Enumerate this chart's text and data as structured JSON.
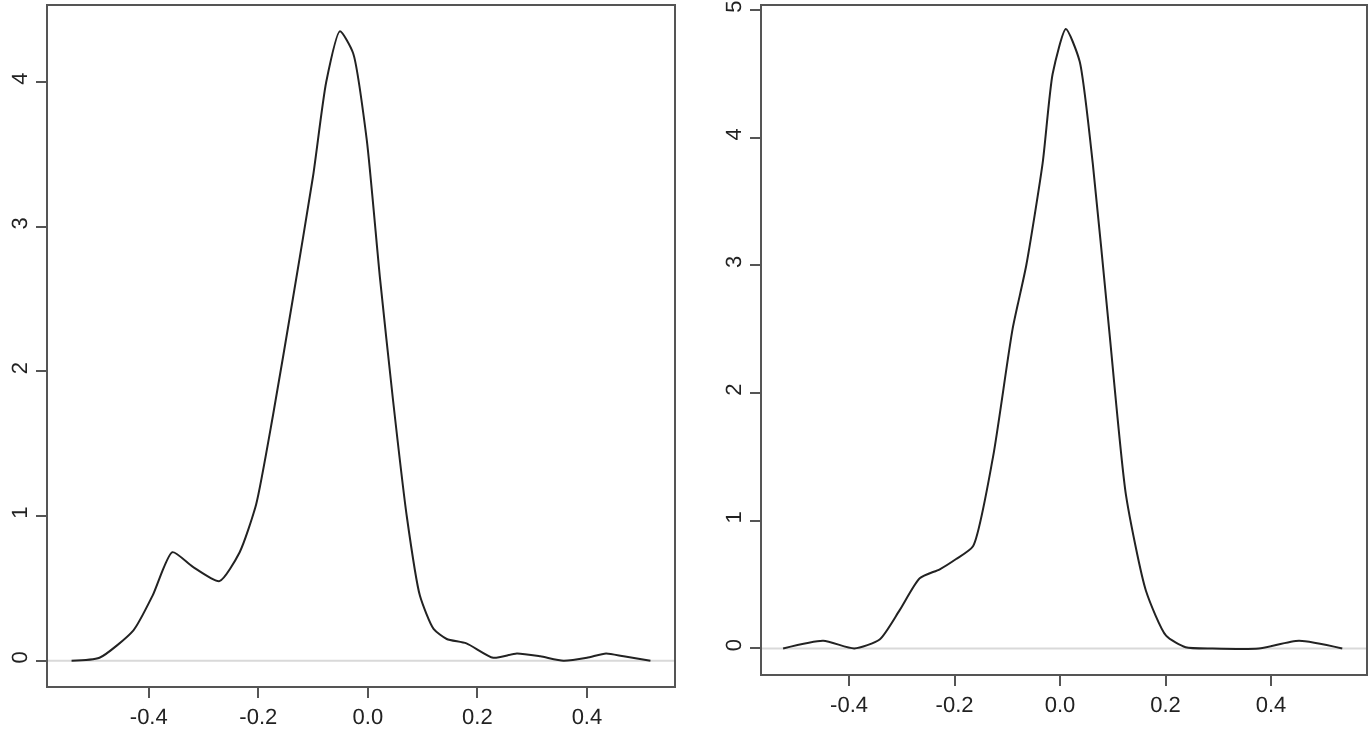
{
  "chart_data": [
    {
      "type": "line",
      "x": [
        -0.541,
        -0.49,
        -0.428,
        -0.393,
        -0.357,
        -0.32,
        -0.271,
        -0.234,
        -0.204,
        -0.173,
        -0.137,
        -0.1,
        -0.076,
        -0.051,
        -0.027,
        -0.002,
        0.022,
        0.046,
        0.071,
        0.095,
        0.12,
        0.144,
        0.18,
        0.229,
        0.272,
        0.315,
        0.357,
        0.4,
        0.435,
        0.467,
        0.516
      ],
      "series": [
        {
          "color": "#222222",
          "values": [
            0,
            0.02,
            0.21,
            0.45,
            0.75,
            0.65,
            0.55,
            0.75,
            1.08,
            1.7,
            2.5,
            3.35,
            4.0,
            4.35,
            4.2,
            3.6,
            2.65,
            1.8,
            1.0,
            0.45,
            0.22,
            0.15,
            0.12,
            0.02,
            0.05,
            0.03,
            0.0,
            0.02,
            0.05,
            0.03,
            0.0
          ]
        }
      ],
      "xlim": [
        -0.584,
        0.559
      ],
      "ylim": [
        -0.175,
        4.525
      ],
      "xticks": [
        {
          "value": -0.4,
          "label": "-0.4"
        },
        {
          "value": -0.2,
          "label": "-0.2"
        },
        {
          "value": 0,
          "label": "0.0"
        },
        {
          "value": 0.2,
          "label": "0.2"
        },
        {
          "value": 0.4,
          "label": "0.4"
        }
      ],
      "yticks": [
        0,
        1,
        2,
        3,
        4
      ],
      "ref_lines": [
        {
          "axis": "y",
          "value": 0,
          "color": "#d9d9d9"
        }
      ]
    },
    {
      "type": "line",
      "x": [
        -0.525,
        -0.449,
        -0.39,
        -0.342,
        -0.304,
        -0.266,
        -0.228,
        -0.197,
        -0.165,
        -0.127,
        -0.09,
        -0.064,
        -0.033,
        -0.014,
        0.011,
        0.037,
        0.062,
        0.093,
        0.125,
        0.163,
        0.201,
        0.238,
        0.289,
        0.377,
        0.453,
        0.535
      ],
      "series": [
        {
          "color": "#222222",
          "values": [
            0,
            0.06,
            0.0,
            0.07,
            0.3,
            0.55,
            0.62,
            0.7,
            0.8,
            1.5,
            2.5,
            3.0,
            3.8,
            4.5,
            4.85,
            4.6,
            3.8,
            2.5,
            1.2,
            0.45,
            0.1,
            0.01,
            0,
            0,
            0.06,
            0
          ]
        }
      ],
      "xlim": [
        -0.565,
        0.58
      ],
      "ylim": [
        -0.2,
        5.03
      ],
      "xticks": [
        {
          "value": -0.4,
          "label": "-0.4"
        },
        {
          "value": -0.2,
          "label": "-0.2"
        },
        {
          "value": 0,
          "label": "0.0"
        },
        {
          "value": 0.2,
          "label": "0.2"
        },
        {
          "value": 0.4,
          "label": "0.4"
        }
      ],
      "yticks": [
        0,
        1,
        2,
        3,
        4,
        5
      ],
      "ref_lines": [
        {
          "axis": "y",
          "value": 0,
          "color": "#d9d9d9"
        }
      ]
    }
  ]
}
